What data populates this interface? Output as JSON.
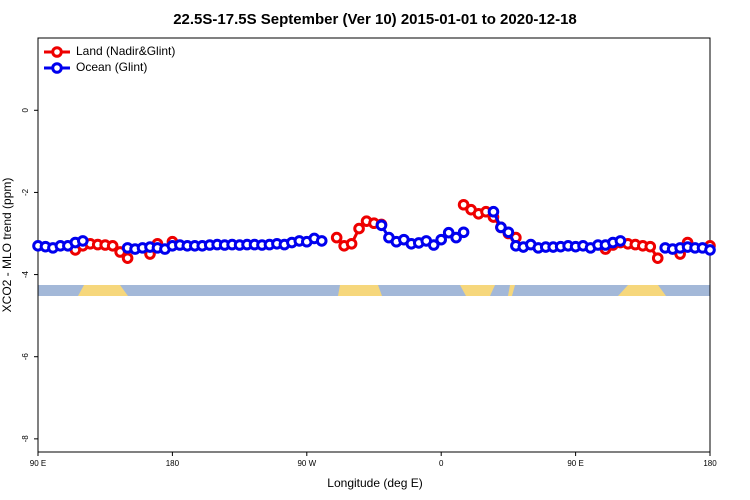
{
  "chart_data": {
    "type": "line",
    "title": "22.5S-17.5S September (Ver 10)   2015-01-01 to 2020-12-18",
    "x_label": "Longitude (deg E)",
    "y_label": "XCO2 - MLO trend (ppm)",
    "xlim": [
      90,
      540
    ],
    "ylim": [
      -8.32,
      1.76
    ],
    "xticks": [
      {
        "value": 90,
        "label": "90 E"
      },
      180,
      {
        "value": 270,
        "label": "90 W"
      },
      {
        "value": 360,
        "label": "0"
      },
      {
        "value": 450,
        "label": "90 E"
      },
      {
        "value": 540,
        "label": "180"
      }
    ],
    "yticks": [
      0,
      -2,
      -4,
      -6,
      -8
    ],
    "legend": "top-left",
    "series": [
      {
        "name": "Land (Nadir&Glint)",
        "color": "#ee0000",
        "x": [
          115,
          120,
          125,
          130,
          135,
          140,
          145,
          150,
          null,
          165,
          170,
          null,
          180,
          null,
          290,
          295,
          300,
          305,
          310,
          315,
          320,
          null,
          375,
          380,
          385,
          390,
          395,
          400,
          405,
          410,
          null,
          470,
          475,
          480,
          485,
          490,
          495,
          500,
          505,
          null,
          520,
          525,
          null,
          540
        ],
        "values": [
          -3.4,
          -3.3,
          -3.25,
          -3.27,
          -3.28,
          -3.3,
          -3.45,
          -3.6,
          null,
          -3.5,
          -3.25,
          null,
          -3.2,
          null,
          -3.1,
          -3.3,
          -3.25,
          -2.88,
          -2.7,
          -2.75,
          -2.78,
          null,
          -2.3,
          -2.42,
          -2.52,
          -2.47,
          -2.6,
          -2.85,
          -3.0,
          -3.1,
          null,
          -3.38,
          -3.28,
          -3.22,
          -3.25,
          -3.27,
          -3.3,
          -3.32,
          -3.6,
          null,
          -3.5,
          -3.22,
          null,
          -3.3
        ]
      },
      {
        "name": "Ocean (Glint)",
        "color": "#0000ee",
        "x": [
          90,
          95,
          100,
          105,
          110,
          115,
          120,
          null,
          150,
          155,
          160,
          165,
          170,
          175,
          180,
          185,
          190,
          195,
          200,
          205,
          210,
          215,
          220,
          225,
          230,
          235,
          240,
          245,
          250,
          255,
          260,
          265,
          270,
          275,
          280,
          null,
          320,
          325,
          330,
          335,
          340,
          345,
          350,
          355,
          360,
          365,
          370,
          375,
          null,
          395,
          400,
          405,
          410,
          415,
          420,
          425,
          430,
          435,
          440,
          445,
          450,
          455,
          460,
          465,
          470,
          475,
          480,
          null,
          510,
          515,
          520,
          525,
          530,
          535,
          540
        ],
        "values": [
          -3.3,
          -3.32,
          -3.35,
          -3.3,
          -3.3,
          -3.22,
          -3.18,
          null,
          -3.35,
          -3.38,
          -3.35,
          -3.33,
          -3.35,
          -3.38,
          -3.3,
          -3.28,
          -3.3,
          -3.3,
          -3.3,
          -3.28,
          -3.27,
          -3.28,
          -3.27,
          -3.28,
          -3.27,
          -3.27,
          -3.28,
          -3.27,
          -3.25,
          -3.27,
          -3.22,
          -3.18,
          -3.2,
          -3.12,
          -3.18,
          null,
          -2.8,
          -3.1,
          -3.2,
          -3.15,
          -3.25,
          -3.23,
          -3.18,
          -3.28,
          -3.15,
          -2.98,
          -3.1,
          -2.97,
          null,
          -2.47,
          -2.85,
          -2.97,
          -3.3,
          -3.33,
          -3.27,
          -3.35,
          -3.33,
          -3.33,
          -3.32,
          -3.3,
          -3.32,
          -3.3,
          -3.35,
          -3.28,
          -3.28,
          -3.22,
          -3.18,
          null,
          -3.35,
          -3.38,
          -3.35,
          -3.33,
          -3.35,
          -3.35,
          -3.4
        ]
      }
    ]
  }
}
